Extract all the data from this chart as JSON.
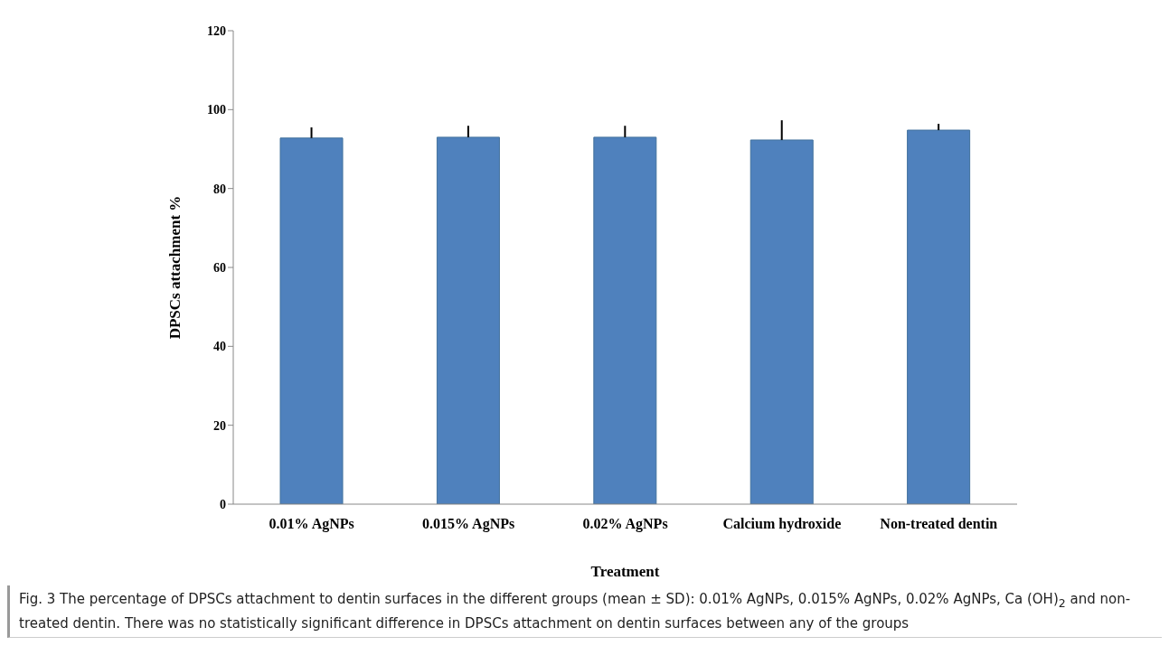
{
  "chart_data": {
    "type": "bar",
    "xlabel": "Treatment",
    "ylabel": "DPSCs attachment %",
    "categories": [
      "0.01% AgNPs",
      "0.015% AgNPs",
      "0.02% AgNPs",
      "Calcium hydroxide",
      "Non-treated dentin"
    ],
    "values": [
      92.8,
      93.0,
      93.0,
      92.3,
      94.8
    ],
    "errors": [
      [
        92.8,
        95.5
      ],
      [
        93.0,
        95.9
      ],
      [
        93.0,
        95.9
      ],
      [
        92.3,
        97.3
      ],
      [
        94.8,
        96.4
      ]
    ],
    "color": "#4f81bd",
    "ylim": [
      0,
      120
    ],
    "yticks": [
      0,
      20,
      40,
      60,
      80,
      100,
      120
    ],
    "grid": false,
    "legend": false,
    "annotations": [
      "Fig. 3 The percentage of DPSCs attachment to dentin surfaces in the different groups (mean ± SD): 0.01% AgNPs, 0.015% AgNPs, 0.02% AgNPs, Ca (OH)$_{2}$ and non-treated dentin. There was no statistically significant difference in DPSCs attachment on dentin surfaces between any of the groups"
    ]
  }
}
